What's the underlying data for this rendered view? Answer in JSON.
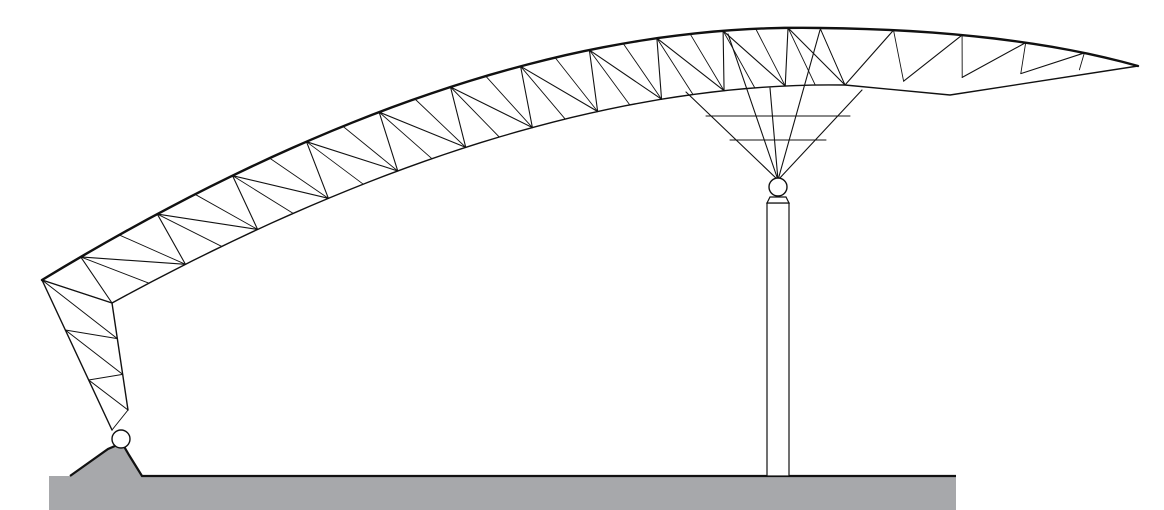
{
  "diagram": {
    "type": "structural-elevation",
    "subject": "curved-roof-space-truss",
    "supports": [
      {
        "kind": "pin",
        "on": "ground-pedestal"
      },
      {
        "kind": "pin",
        "on": "column"
      }
    ],
    "truss_panels": {
      "left_leg": 3,
      "main_span": 22,
      "cantilever": 5
    },
    "colors": {
      "ground": "#a7a8ab",
      "line": "#111111",
      "background": "#ffffff"
    }
  }
}
